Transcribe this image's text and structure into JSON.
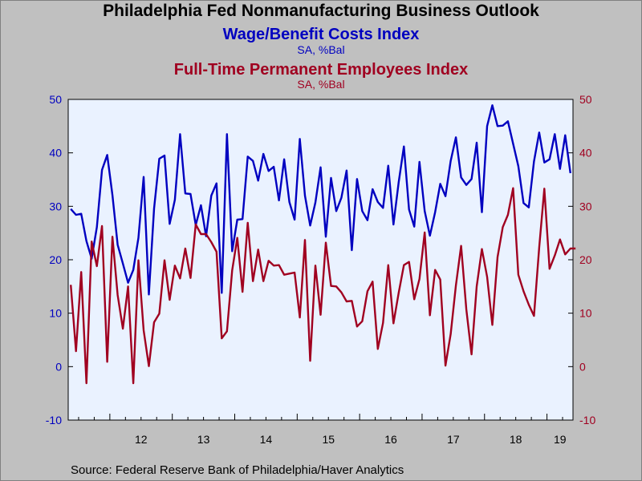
{
  "title": "Philadelphia Fed Nonmanufacturing Business Outlook",
  "subtitle_series1": "Wage/Benefit Costs Index",
  "unit_series1": "SA, %Bal",
  "subtitle_series2": "Full-Time Permanent Employees Index",
  "unit_series2": "SA, %Bal",
  "source": "Source:  Federal Reserve Bank of Philadelphia/Haver Analytics",
  "colors": {
    "series1": "#0000c0",
    "series2": "#a00020",
    "plot_bg": "#eaf2ff",
    "page_bg": "#c0c0c0"
  },
  "chart_data": {
    "type": "line",
    "x_start": "2011-05",
    "frequency": "monthly",
    "x_tick_labels": [
      "12",
      "13",
      "14",
      "15",
      "16",
      "17",
      "18",
      "19"
    ],
    "ylim": [
      -10,
      50
    ],
    "y_ticks": [
      -10,
      0,
      10,
      20,
      30,
      40,
      50
    ],
    "grid": false,
    "legend": "none",
    "series": [
      {
        "name": "Wage/Benefit Costs Index",
        "axis": "left",
        "values": [
          29.5,
          28.4,
          28.6,
          23.5,
          20.2,
          26.1,
          36.8,
          39.6,
          32.1,
          22.8,
          19.3,
          15.7,
          18.1,
          24.1,
          35.5,
          13.5,
          29.6,
          38.9,
          39.5,
          26.7,
          31.2,
          43.5,
          32.4,
          32.3,
          26.5,
          30.2,
          24.4,
          32.0,
          34.3,
          13.8,
          43.5,
          21.6,
          27.5,
          27.6,
          39.3,
          38.5,
          34.8,
          39.8,
          36.6,
          37.4,
          31.1,
          38.8,
          30.8,
          27.5,
          42.6,
          32.0,
          26.4,
          30.7,
          37.3,
          24.3,
          35.3,
          29.1,
          31.6,
          36.7,
          21.8,
          35.1,
          29.1,
          27.4,
          33.2,
          30.8,
          29.7,
          37.6,
          26.6,
          34.5,
          41.2,
          29.4,
          26.2,
          38.3,
          29.1,
          24.5,
          28.9,
          34.2,
          31.9,
          38.5,
          42.9,
          35.4,
          34.0,
          35.1,
          41.9,
          28.9,
          45.0,
          48.9,
          45.0,
          45.1,
          45.9,
          41.7,
          37.5,
          30.6,
          29.8,
          38.4,
          43.8,
          38.2,
          38.8,
          43.5,
          37.0,
          43.3,
          36.2
        ]
      },
      {
        "name": "Full-Time Permanent Employees Index",
        "axis": "right",
        "values": [
          15.3,
          2.9,
          17.7,
          -3.1,
          23.4,
          18.8,
          26.3,
          0.9,
          24.3,
          13.4,
          7.1,
          15.0,
          -3.1,
          19.9,
          6.8,
          0.1,
          8.3,
          9.9,
          19.9,
          12.5,
          18.9,
          16.5,
          22.1,
          16.6,
          26.6,
          24.8,
          24.8,
          23.3,
          21.5,
          5.3,
          6.6,
          18.0,
          24.1,
          14.0,
          26.9,
          16.0,
          21.9,
          16.0,
          19.8,
          18.9,
          19.0,
          17.2,
          17.4,
          17.6,
          9.2,
          23.7,
          1.1,
          18.9,
          9.7,
          23.2,
          15.1,
          15.0,
          13.9,
          12.2,
          12.3,
          7.5,
          8.5,
          14.1,
          15.9,
          3.3,
          8.2,
          19.0,
          8.1,
          13.8,
          19.0,
          19.6,
          12.6,
          16.4,
          25.1,
          9.6,
          18.1,
          16.3,
          0.2,
          6.1,
          15.2,
          22.6,
          10.7,
          2.3,
          15.0,
          22.0,
          16.8,
          7.8,
          20.5,
          26.1,
          28.4,
          33.4,
          17.2,
          14.1,
          11.6,
          9.5,
          22.3,
          33.3,
          18.3,
          20.8,
          23.8,
          21.0,
          22.1,
          22.1
        ]
      }
    ]
  }
}
